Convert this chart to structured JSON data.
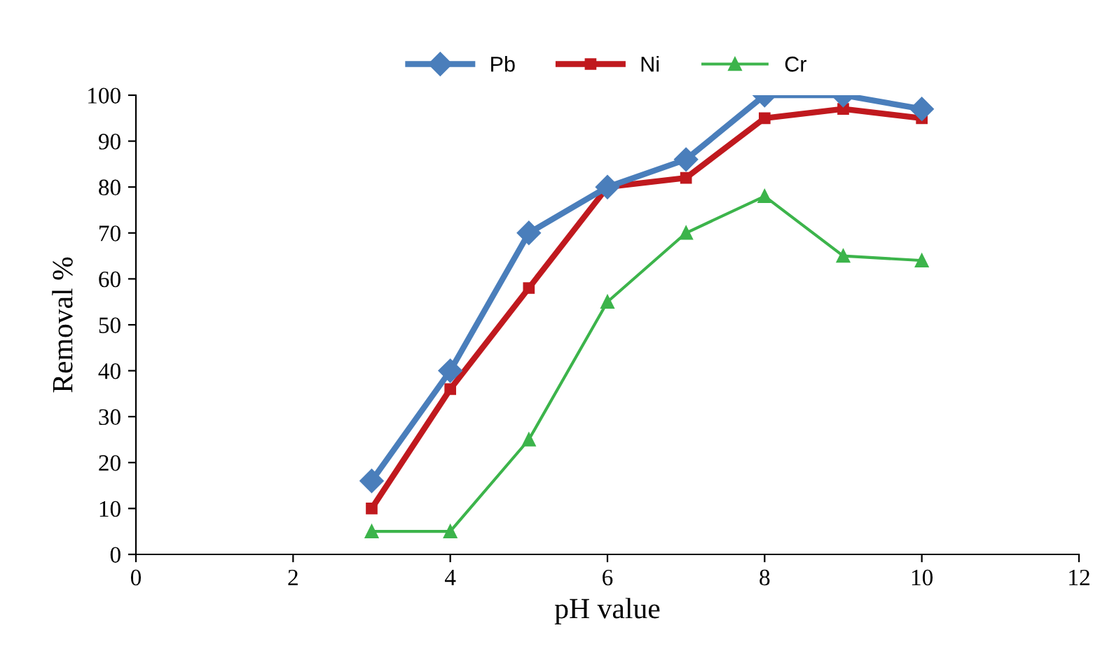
{
  "chart_data": {
    "type": "line",
    "xlabel": "pH value",
    "ylabel": "Removal %",
    "x": [
      3,
      4,
      5,
      6,
      7,
      8,
      9,
      10
    ],
    "series": [
      {
        "name": "Pb",
        "color": "#4a7ebb",
        "marker": "diamond",
        "values": [
          16,
          40,
          70,
          80,
          86,
          100,
          100,
          97
        ]
      },
      {
        "name": "Ni",
        "color": "#c0191e",
        "marker": "square",
        "values": [
          10,
          36,
          58,
          80,
          82,
          95,
          97,
          95
        ]
      },
      {
        "name": "Cr",
        "color": "#3cb44b",
        "marker": "triangle",
        "values": [
          5,
          5,
          25,
          55,
          70,
          78,
          65,
          64
        ]
      }
    ],
    "xlim": [
      0,
      12
    ],
    "xticks": [
      0,
      2,
      4,
      6,
      8,
      10,
      12
    ],
    "ylim": [
      0,
      100
    ],
    "yticks": [
      0,
      10,
      20,
      30,
      40,
      50,
      60,
      70,
      80,
      90,
      100
    ],
    "grid": false,
    "legend": "top",
    "line_style": "solid"
  }
}
